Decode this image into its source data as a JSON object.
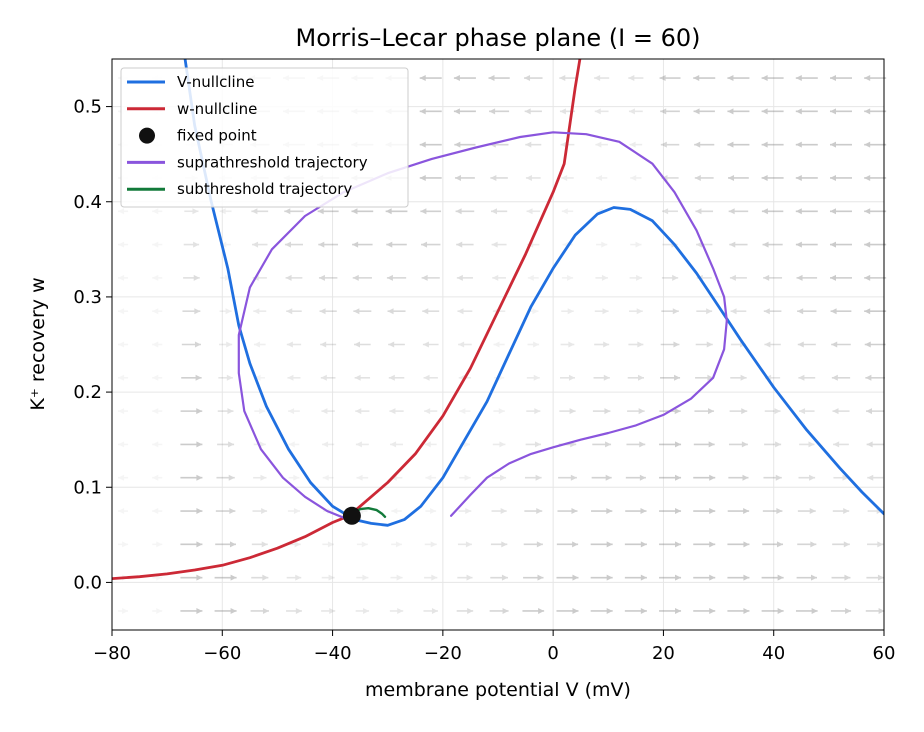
{
  "chart_data": {
    "type": "line",
    "title": "Morris–Lecar phase plane (I = 60)",
    "xlabel": "membrane potential  V (mV)",
    "ylabel": "K⁺ recovery  w",
    "xlim": [
      -80,
      60
    ],
    "ylim": [
      -0.05,
      0.55
    ],
    "xticks": [
      -80,
      -60,
      -40,
      -20,
      0,
      20,
      40,
      60
    ],
    "xtick_labels": [
      "−80",
      "−60",
      "−40",
      "−20",
      "0",
      "20",
      "40",
      "60"
    ],
    "yticks": [
      0.0,
      0.1,
      0.2,
      0.3,
      0.4,
      0.5
    ],
    "ytick_labels": [
      "0.0",
      "0.1",
      "0.2",
      "0.3",
      "0.4",
      "0.5"
    ],
    "grid": true,
    "legend_position": "top-left",
    "legend": [
      {
        "label": "V-nullcline",
        "color": "#1f6fe0",
        "kind": "line"
      },
      {
        "label": "w-nullcline",
        "color": "#cc2936",
        "kind": "line"
      },
      {
        "label": "fixed point",
        "color": "#111111",
        "kind": "marker"
      },
      {
        "label": "suprathreshold trajectory",
        "color": "#8a55dd",
        "kind": "line"
      },
      {
        "label": "subthreshold trajectory",
        "color": "#127a3a",
        "kind": "line"
      }
    ],
    "series": [
      {
        "name": "V-nullcline",
        "color": "#1f6fe0",
        "points": [
          [
            -67,
            0.56
          ],
          [
            -65,
            0.48
          ],
          [
            -62,
            0.4
          ],
          [
            -59,
            0.33
          ],
          [
            -57,
            0.27
          ],
          [
            -55,
            0.23
          ],
          [
            -52,
            0.185
          ],
          [
            -48,
            0.14
          ],
          [
            -44,
            0.105
          ],
          [
            -40,
            0.08
          ],
          [
            -36,
            0.066
          ],
          [
            -33,
            0.062
          ],
          [
            -30,
            0.06
          ],
          [
            -27,
            0.066
          ],
          [
            -24,
            0.08
          ],
          [
            -20,
            0.11
          ],
          [
            -16,
            0.15
          ],
          [
            -12,
            0.19
          ],
          [
            -8,
            0.24
          ],
          [
            -4,
            0.29
          ],
          [
            0,
            0.33
          ],
          [
            4,
            0.365
          ],
          [
            8,
            0.387
          ],
          [
            11,
            0.394
          ],
          [
            14,
            0.392
          ],
          [
            18,
            0.38
          ],
          [
            22,
            0.355
          ],
          [
            26,
            0.325
          ],
          [
            30,
            0.29
          ],
          [
            34,
            0.255
          ],
          [
            40,
            0.205
          ],
          [
            46,
            0.16
          ],
          [
            52,
            0.12
          ],
          [
            56,
            0.095
          ],
          [
            60,
            0.072
          ]
        ]
      },
      {
        "name": "w-nullcline",
        "color": "#cc2936",
        "points": [
          [
            -80,
            0.004
          ],
          [
            -75,
            0.006
          ],
          [
            -70,
            0.009
          ],
          [
            -65,
            0.013
          ],
          [
            -60,
            0.018
          ],
          [
            -55,
            0.026
          ],
          [
            -50,
            0.036
          ],
          [
            -45,
            0.048
          ],
          [
            -40,
            0.063
          ],
          [
            -37,
            0.07
          ],
          [
            -35,
            0.08
          ],
          [
            -30,
            0.105
          ],
          [
            -25,
            0.135
          ],
          [
            -20,
            0.175
          ],
          [
            -15,
            0.225
          ],
          [
            -10,
            0.285
          ],
          [
            -5,
            0.345
          ],
          [
            0,
            0.41
          ],
          [
            2,
            0.44
          ],
          [
            4,
            0.52
          ],
          [
            5,
            0.555
          ]
        ]
      },
      {
        "name": "suprathreshold trajectory",
        "color": "#8a55dd",
        "points": [
          [
            -18.5,
            0.07
          ],
          [
            -15,
            0.092
          ],
          [
            -12,
            0.11
          ],
          [
            -8,
            0.125
          ],
          [
            -4,
            0.135
          ],
          [
            0,
            0.142
          ],
          [
            5,
            0.15
          ],
          [
            10,
            0.157
          ],
          [
            15,
            0.165
          ],
          [
            20,
            0.176
          ],
          [
            25,
            0.193
          ],
          [
            29,
            0.215
          ],
          [
            31,
            0.245
          ],
          [
            31.5,
            0.275
          ],
          [
            31,
            0.3
          ],
          [
            29,
            0.33
          ],
          [
            26,
            0.37
          ],
          [
            22,
            0.41
          ],
          [
            18,
            0.44
          ],
          [
            12,
            0.463
          ],
          [
            6,
            0.471
          ],
          [
            0,
            0.473
          ],
          [
            -6,
            0.468
          ],
          [
            -14,
            0.457
          ],
          [
            -22,
            0.445
          ],
          [
            -30,
            0.43
          ],
          [
            -38,
            0.41
          ],
          [
            -45,
            0.385
          ],
          [
            -51,
            0.35
          ],
          [
            -55,
            0.31
          ],
          [
            -57,
            0.26
          ],
          [
            -57,
            0.22
          ],
          [
            -56,
            0.18
          ],
          [
            -53,
            0.14
          ],
          [
            -49,
            0.11
          ],
          [
            -45,
            0.09
          ],
          [
            -41,
            0.075
          ],
          [
            -38,
            0.068
          ],
          [
            -37,
            0.068
          ]
        ]
      },
      {
        "name": "subthreshold trajectory",
        "color": "#127a3a",
        "points": [
          [
            -36.5,
            0.072
          ],
          [
            -35,
            0.077
          ],
          [
            -33.5,
            0.078
          ],
          [
            -32,
            0.076
          ],
          [
            -31,
            0.072
          ],
          [
            -30.5,
            0.069
          ]
        ]
      }
    ],
    "fixed_point": {
      "V": -36.5,
      "w": 0.07
    }
  }
}
